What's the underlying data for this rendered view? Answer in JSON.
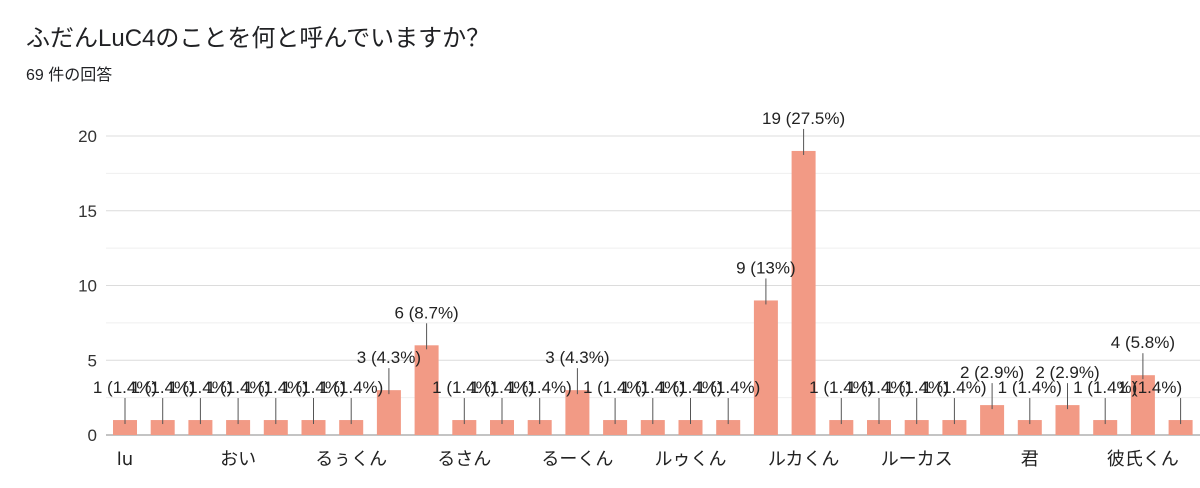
{
  "header": {
    "title": "ふだんLuC4のことを何と呼んでいますか？",
    "response_count": "69 件の回答"
  },
  "colors": {
    "bar": "#f29a85",
    "grid": "#e6e6e6",
    "axis": "#888888"
  },
  "chart_data": {
    "type": "bar",
    "title": "ふだんLuC4のことを何と呼んでいますか？",
    "subtitle": "69 件の回答",
    "ylim": [
      0,
      20
    ],
    "yticks": [
      0,
      5,
      10,
      15,
      20
    ],
    "grid": true,
    "visible_category_labels": [
      "lu",
      "おい",
      "るぅくん",
      "るさん",
      "るーくん",
      "ルゥくん",
      "ルカくん",
      "ルーカス",
      "君",
      "彼氏くん"
    ],
    "categories": [
      "lu",
      "",
      "",
      "おい",
      "",
      "",
      "るぅくん",
      "",
      "",
      "るさん",
      "",
      "",
      "るーくん",
      "",
      "",
      "ルゥくん",
      "",
      "",
      "ルカくん",
      "",
      "",
      "ルーカス",
      "",
      "",
      "君",
      "",
      "",
      "彼氏くん",
      ""
    ],
    "values": [
      1,
      1,
      1,
      1,
      1,
      1,
      1,
      3,
      6,
      1,
      1,
      1,
      3,
      1,
      1,
      1,
      1,
      9,
      19,
      1,
      1,
      1,
      1,
      2,
      1,
      2,
      1,
      4,
      1
    ],
    "data_labels": [
      "1 (1.4%)",
      "1 (1.4%)",
      "1 (1.4%)",
      "1 (1.4%)",
      "1 (1.4%)",
      "1 (1.4%)",
      "1 (1.4%)",
      "3 (4.3%)",
      "6 (8.7%)",
      "1 (1.4%)",
      "1 (1.4%)",
      "1 (1.4%)",
      "3 (4.3%)",
      "1 (1.4%)",
      "1 (1.4%)",
      "1 (1.4%)",
      "1 (1.4%)",
      "9 (13%)",
      "19 (27.5%)",
      "1 (1.4%)",
      "1 (1.4%)",
      "1 (1.4%)",
      "1 (1.4%)",
      "2 (2.9%)",
      "1 (1.4%)",
      "2 (2.9%)",
      "1 (1.4%)",
      "4 (5.8%)",
      "1 (1.4%)"
    ]
  }
}
